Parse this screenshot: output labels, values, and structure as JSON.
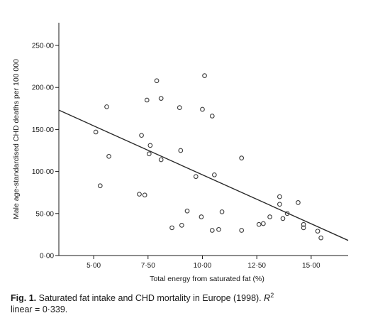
{
  "chart_data": {
    "type": "scatter",
    "xlabel": "Total energy from saturated fat (%)",
    "ylabel": "Male age-standardised CHD deaths per 100 000",
    "xlim": [
      3.4,
      16.7
    ],
    "ylim": [
      0,
      250
    ],
    "x_ticks": [
      5.0,
      7.5,
      10.0,
      12.5,
      15.0
    ],
    "x_tick_labels": [
      "5·00",
      "7·50",
      "10·00",
      "12·50",
      "15·00"
    ],
    "y_ticks": [
      0,
      50,
      100,
      150,
      200,
      250
    ],
    "y_tick_labels": [
      "0·00",
      "50·00",
      "100·00",
      "150·00",
      "200·00",
      "250·00"
    ],
    "grid": false,
    "legend": "none",
    "points": [
      {
        "x": 5.1,
        "y": 147
      },
      {
        "x": 5.3,
        "y": 83
      },
      {
        "x": 5.6,
        "y": 177
      },
      {
        "x": 5.7,
        "y": 118
      },
      {
        "x": 7.1,
        "y": 73
      },
      {
        "x": 7.2,
        "y": 143
      },
      {
        "x": 7.35,
        "y": 72
      },
      {
        "x": 7.45,
        "y": 185
      },
      {
        "x": 7.55,
        "y": 121
      },
      {
        "x": 7.6,
        "y": 131
      },
      {
        "x": 7.9,
        "y": 208
      },
      {
        "x": 8.1,
        "y": 187
      },
      {
        "x": 8.1,
        "y": 114
      },
      {
        "x": 8.6,
        "y": 33
      },
      {
        "x": 8.95,
        "y": 176
      },
      {
        "x": 9.0,
        "y": 125
      },
      {
        "x": 9.05,
        "y": 36
      },
      {
        "x": 9.3,
        "y": 53
      },
      {
        "x": 9.7,
        "y": 94
      },
      {
        "x": 9.95,
        "y": 46
      },
      {
        "x": 10.0,
        "y": 174
      },
      {
        "x": 10.1,
        "y": 214
      },
      {
        "x": 10.45,
        "y": 166
      },
      {
        "x": 10.45,
        "y": 30
      },
      {
        "x": 10.55,
        "y": 96
      },
      {
        "x": 10.75,
        "y": 31
      },
      {
        "x": 10.9,
        "y": 52
      },
      {
        "x": 11.8,
        "y": 116
      },
      {
        "x": 11.8,
        "y": 30
      },
      {
        "x": 12.6,
        "y": 37
      },
      {
        "x": 12.8,
        "y": 38
      },
      {
        "x": 13.1,
        "y": 46
      },
      {
        "x": 13.55,
        "y": 70
      },
      {
        "x": 13.55,
        "y": 61
      },
      {
        "x": 13.7,
        "y": 44
      },
      {
        "x": 13.9,
        "y": 50
      },
      {
        "x": 14.4,
        "y": 63
      },
      {
        "x": 14.65,
        "y": 37
      },
      {
        "x": 14.65,
        "y": 33
      },
      {
        "x": 15.3,
        "y": 29
      },
      {
        "x": 15.45,
        "y": 21
      }
    ],
    "fit_line": {
      "x": [
        3.4,
        16.7
      ],
      "y": [
        173,
        18
      ]
    },
    "marker_color": "#3a3a3a",
    "line_color": "#2a2a2a"
  },
  "caption": {
    "label": "Fig. 1.",
    "text": "Saturated fat intake and CHD mortality in Europe (1998).",
    "r2_symbol": "R",
    "r2_superscript": "2",
    "line2": "linear = 0·339."
  }
}
